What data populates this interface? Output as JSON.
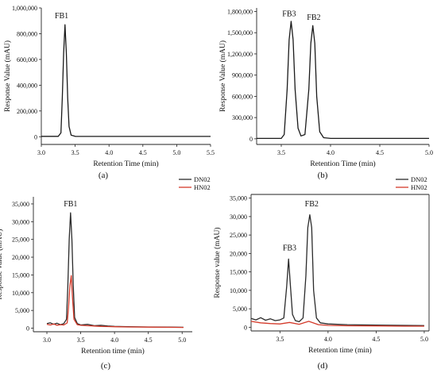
{
  "colors": {
    "black": "#1a1a1a",
    "dn_series": "#2b2b2b",
    "hn_series": "#d43a2a"
  },
  "chart_data": [
    {
      "panel_label": "(a)",
      "type": "line",
      "xlabel": "Retention Time (min)",
      "ylabel": "Response Value (mAU)",
      "xlim": [
        3.0,
        5.5
      ],
      "ylim": [
        -60000,
        1000000
      ],
      "xticks": [
        3.0,
        3.5,
        4.0,
        4.5,
        5.0,
        5.5
      ],
      "xtick_labels": [
        "3.0",
        "3.5",
        "4.0",
        "4.5",
        "5.0",
        "5.5"
      ],
      "yticks": [
        0,
        200000,
        400000,
        600000,
        800000,
        1000000
      ],
      "ytick_labels": [
        "0",
        "200,000",
        "400,000",
        "600,000",
        "800,000",
        "1,000,000"
      ],
      "grid": false,
      "annotations": [
        {
          "text": "FB1",
          "x": 3.3,
          "y": 920000
        }
      ],
      "series": [
        {
          "color": "#1a1a1a",
          "x": [
            3.0,
            3.25,
            3.29,
            3.31,
            3.33,
            3.35,
            3.37,
            3.39,
            3.41,
            3.44,
            3.5,
            3.6,
            5.5
          ],
          "y": [
            3000,
            3000,
            30000,
            300000,
            650000,
            870000,
            650000,
            300000,
            80000,
            12000,
            3000,
            2000,
            2000
          ]
        }
      ]
    },
    {
      "panel_label": "(b)",
      "type": "line",
      "xlabel": "Retention Time (min)",
      "ylabel": "Response Value (mAU)",
      "xlim": [
        3.25,
        5.0
      ],
      "ylim": [
        -80000,
        1850000
      ],
      "xticks": [
        3.5,
        4.0,
        4.5,
        5.0
      ],
      "xtick_labels": [
        "3.5",
        "4.0",
        "4.5",
        "5.0"
      ],
      "yticks": [
        0,
        300000,
        600000,
        900000,
        1200000,
        1500000,
        1800000
      ],
      "ytick_labels": [
        "0",
        "300,000",
        "600,000",
        "900,000",
        "1,200,000",
        "1,500,000",
        "1,800,000"
      ],
      "grid": false,
      "annotations": [
        {
          "text": "FB3",
          "x": 3.58,
          "y": 1730000
        },
        {
          "text": "FB2",
          "x": 3.83,
          "y": 1680000
        }
      ],
      "series": [
        {
          "color": "#1a1a1a",
          "x": [
            3.25,
            3.5,
            3.53,
            3.56,
            3.58,
            3.6,
            3.62,
            3.64,
            3.67,
            3.7,
            3.74,
            3.78,
            3.8,
            3.82,
            3.84,
            3.86,
            3.89,
            3.93,
            4.0,
            5.0
          ],
          "y": [
            5000,
            5000,
            60000,
            700000,
            1400000,
            1660000,
            1400000,
            700000,
            150000,
            40000,
            60000,
            700000,
            1350000,
            1600000,
            1350000,
            600000,
            100000,
            15000,
            5000,
            5000
          ]
        }
      ]
    },
    {
      "panel_label": "(c)",
      "type": "line",
      "xlabel": "Retention time (min)",
      "ylabel": "Response value (mAU)",
      "xlim": [
        2.8,
        5.15
      ],
      "ylim": [
        -1000,
        37000
      ],
      "xticks": [
        3.0,
        3.5,
        4.0,
        4.5,
        5.0
      ],
      "xtick_labels": [
        "3.0",
        "3.5",
        "4.0",
        "4.5",
        "5.0"
      ],
      "yticks": [
        0,
        5000,
        10000,
        15000,
        20000,
        25000,
        30000,
        35000
      ],
      "ytick_labels": [
        "0",
        "5,000",
        "10,000",
        "15,000",
        "20,000",
        "25,000",
        "30,000",
        "35,000"
      ],
      "grid": false,
      "legend": {
        "position": "top-right",
        "entries": [
          "DN02",
          "HN02"
        ]
      },
      "annotations": [
        {
          "text": "FB1",
          "x": 3.35,
          "y": 34300
        }
      ],
      "series": [
        {
          "name": "DN02",
          "color": "#2b2b2b",
          "x": [
            3.0,
            3.05,
            3.1,
            3.15,
            3.2,
            3.25,
            3.29,
            3.31,
            3.33,
            3.35,
            3.37,
            3.39,
            3.41,
            3.45,
            3.5,
            3.6,
            3.7,
            3.8,
            3.9,
            4.0,
            4.2,
            4.5,
            4.8,
            5.02
          ],
          "y": [
            1300,
            1500,
            1100,
            1400,
            1000,
            1300,
            2500,
            12000,
            25000,
            32500,
            25000,
            12000,
            3000,
            1300,
            900,
            1100,
            700,
            800,
            600,
            500,
            400,
            350,
            300,
            250
          ]
        },
        {
          "name": "HN02",
          "color": "#d43a2a",
          "x": [
            3.0,
            3.05,
            3.1,
            3.15,
            3.2,
            3.25,
            3.3,
            3.32,
            3.34,
            3.36,
            3.38,
            3.4,
            3.45,
            3.5,
            3.6,
            3.7,
            3.8,
            3.9,
            4.0,
            4.2,
            4.5,
            4.8,
            5.02
          ],
          "y": [
            1100,
            900,
            1200,
            800,
            1000,
            900,
            1500,
            6000,
            12000,
            14800,
            8000,
            2500,
            1000,
            800,
            700,
            600,
            500,
            450,
            400,
            350,
            300,
            250,
            200
          ]
        }
      ]
    },
    {
      "panel_label": "(d)",
      "type": "line",
      "xlabel": "Retention time (min)",
      "ylabel": "Response value (mAU)",
      "xlim": [
        3.2,
        5.05
      ],
      "ylim": [
        -1000,
        36000
      ],
      "xticks": [
        3.5,
        4.0,
        4.5,
        5.0
      ],
      "xtick_labels": [
        "3.5",
        "4.0",
        "4.5",
        "5.0"
      ],
      "yticks": [
        0,
        5000,
        10000,
        15000,
        20000,
        25000,
        30000,
        35000
      ],
      "ytick_labels": [
        "0",
        "5,000",
        "10,000",
        "15,000",
        "20,000",
        "25,000",
        "30,000",
        "35,000"
      ],
      "grid": false,
      "legend": {
        "position": "top-right",
        "entries": [
          "DN02",
          "HN02"
        ]
      },
      "annotations": [
        {
          "text": "FB3",
          "x": 3.6,
          "y": 20800
        },
        {
          "text": "FB2",
          "x": 3.83,
          "y": 32800
        }
      ],
      "series": [
        {
          "name": "DN02",
          "color": "#2b2b2b",
          "x": [
            3.2,
            3.25,
            3.3,
            3.35,
            3.4,
            3.45,
            3.5,
            3.54,
            3.57,
            3.59,
            3.61,
            3.63,
            3.66,
            3.7,
            3.74,
            3.77,
            3.79,
            3.81,
            3.83,
            3.85,
            3.88,
            3.92,
            4.0,
            4.2,
            4.5,
            4.8,
            5.0
          ],
          "y": [
            2400,
            2000,
            2600,
            1900,
            2300,
            1800,
            2000,
            2500,
            11000,
            18500,
            11000,
            3500,
            1800,
            1500,
            2500,
            14000,
            27000,
            30500,
            27000,
            10000,
            2500,
            1200,
            900,
            700,
            600,
            500,
            450
          ]
        },
        {
          "name": "HN02",
          "color": "#d43a2a",
          "x": [
            3.2,
            3.3,
            3.4,
            3.5,
            3.6,
            3.7,
            3.8,
            3.9,
            4.0,
            4.2,
            4.5,
            4.8,
            5.0
          ],
          "y": [
            1600,
            1200,
            1000,
            900,
            1300,
            800,
            1600,
            700,
            500,
            400,
            350,
            300,
            280
          ]
        }
      ]
    }
  ]
}
